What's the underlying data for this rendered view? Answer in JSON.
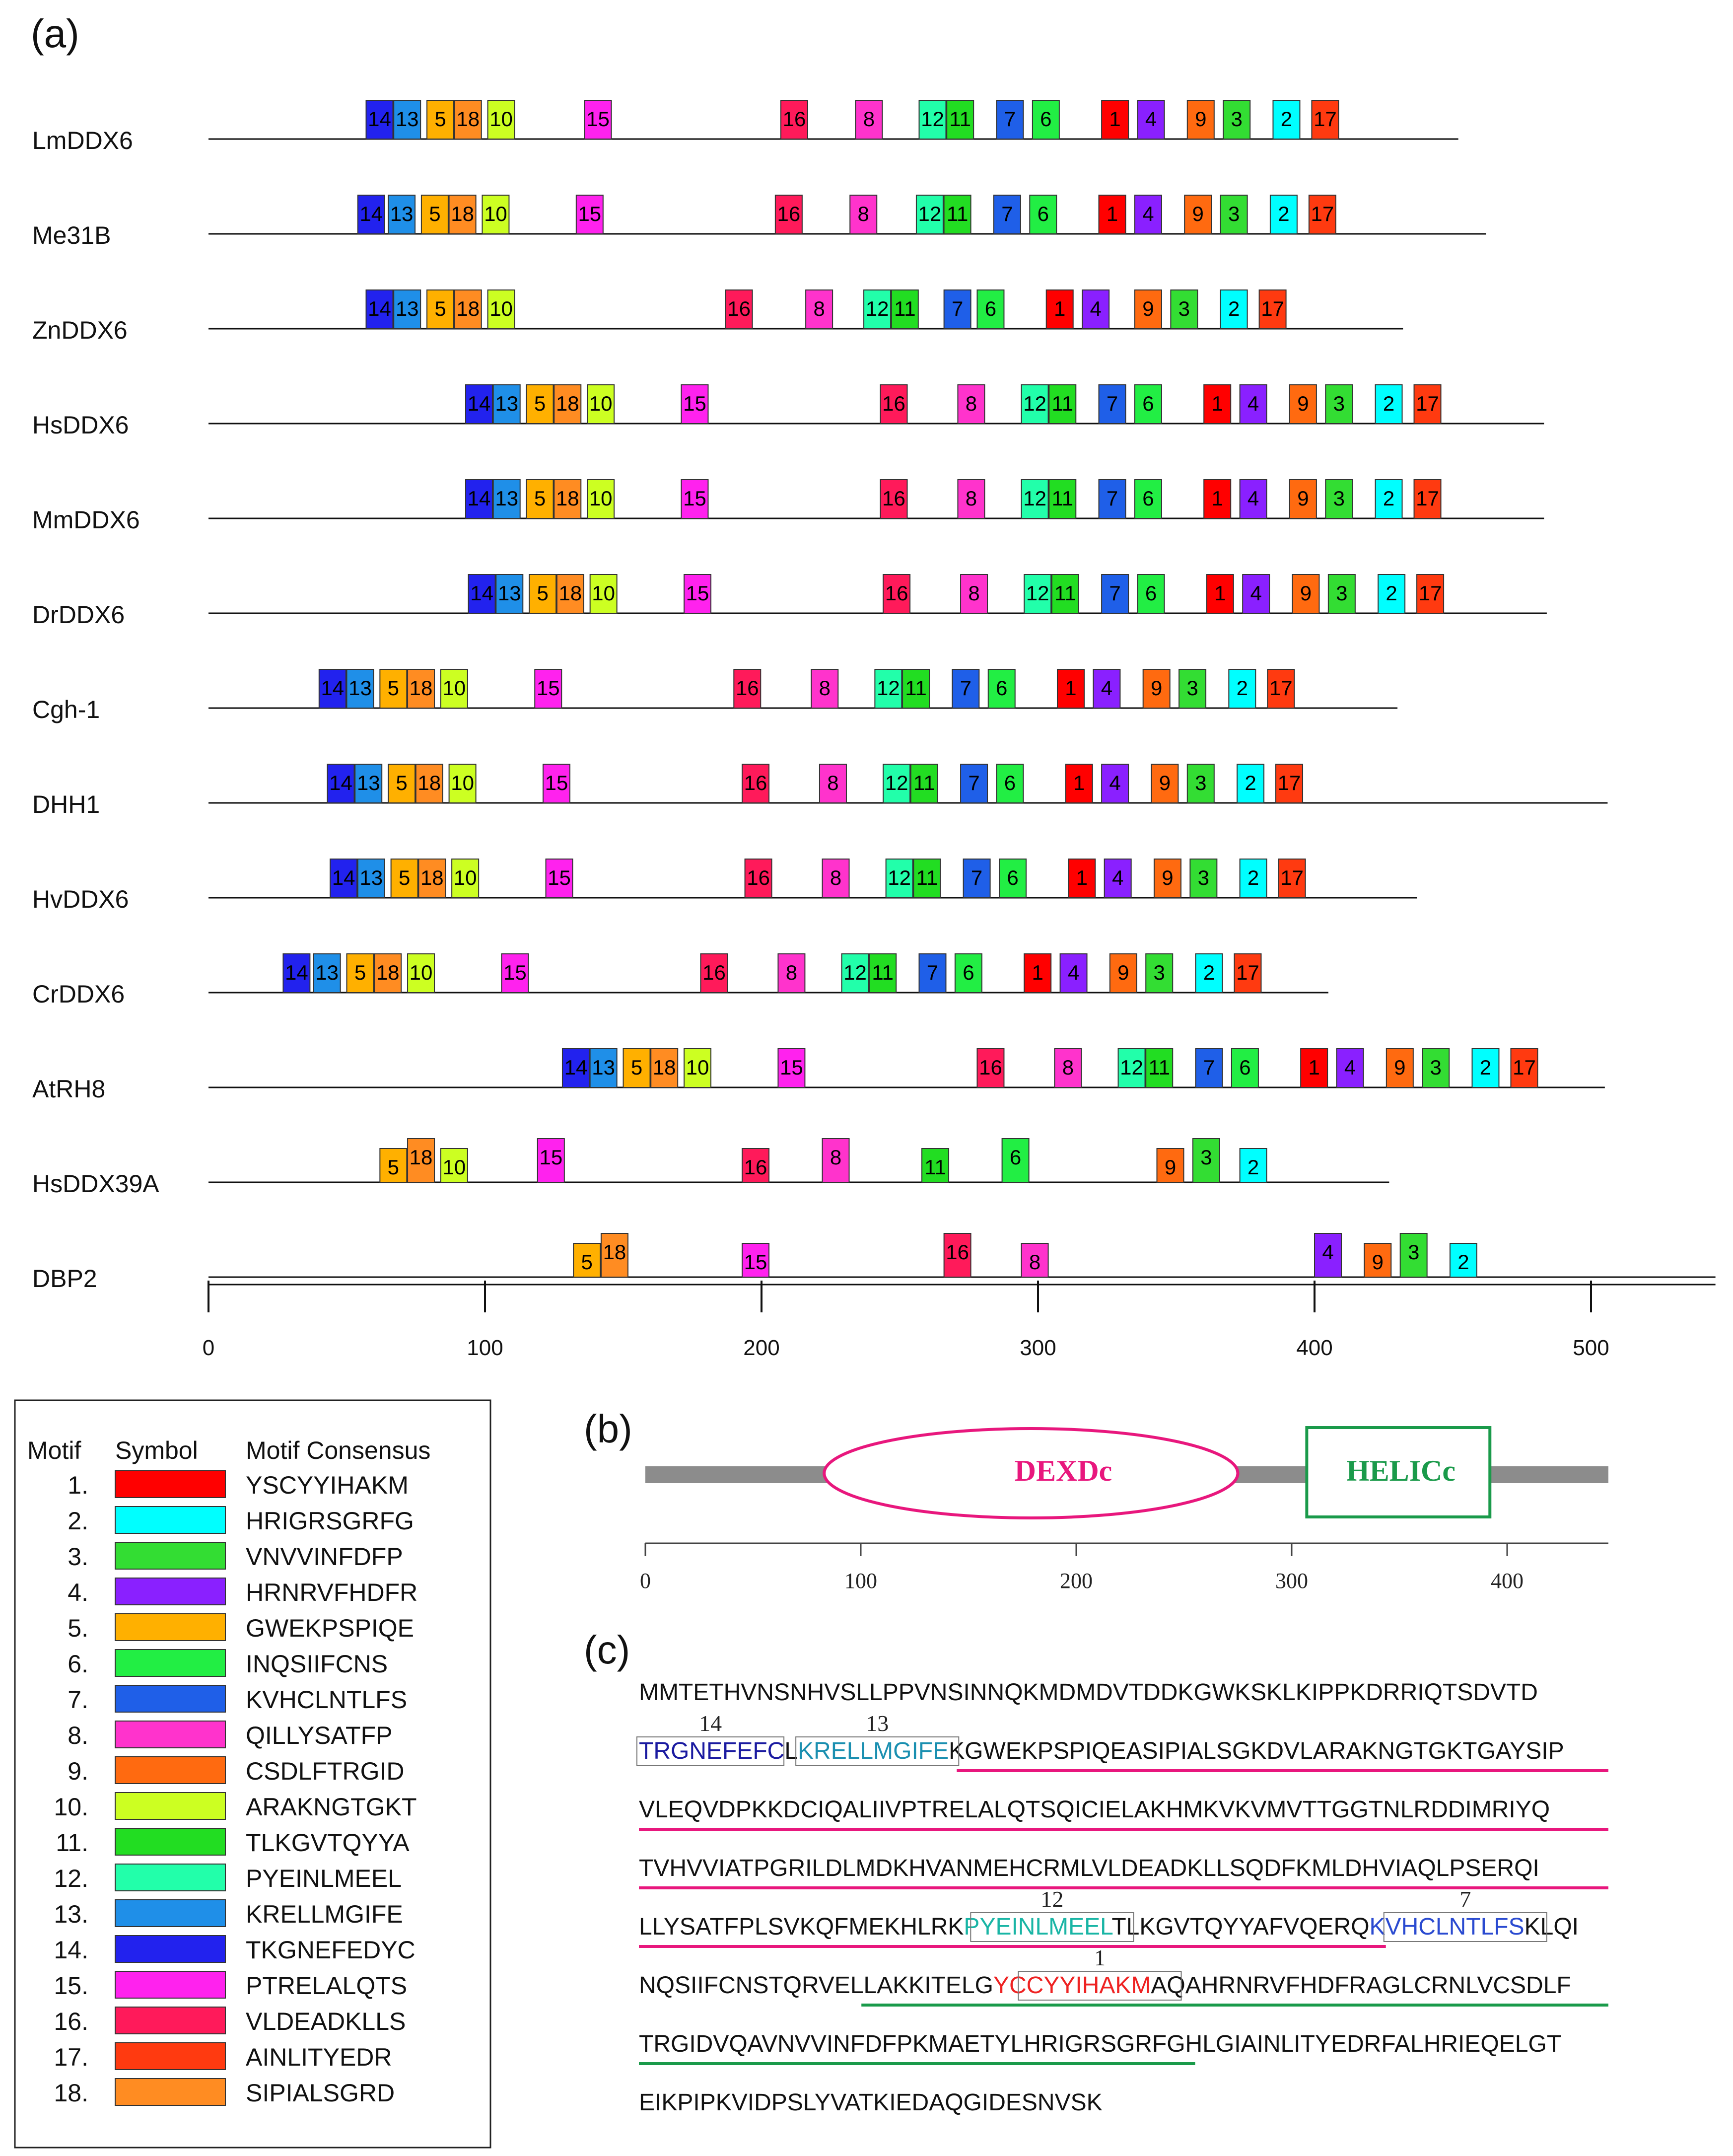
{
  "panels": {
    "a": "(a)",
    "b": "(b)",
    "c": "(c)"
  },
  "motif_colors": {
    "1": "#ff0000",
    "2": "#00ffff",
    "3": "#33dd33",
    "4": "#8a20ff",
    "5": "#ffb000",
    "6": "#22ee44",
    "7": "#1f5fe8",
    "8": "#ff33cc",
    "9": "#ff6a10",
    "10": "#ccff22",
    "11": "#22dd22",
    "12": "#22ffaa",
    "13": "#1f8fe8",
    "14": "#2222ee",
    "15": "#ff22ee",
    "16": "#ff1a5a",
    "17": "#ff3a10",
    "18": "#ff8c22"
  },
  "panel_a": {
    "axis": {
      "ticks": [
        0,
        100,
        200,
        300,
        400,
        500
      ],
      "max": 545
    },
    "proteins": [
      {
        "name": "LmDDX6",
        "length": 452,
        "motifs": [
          [
            14,
            57
          ],
          [
            13,
            67
          ],
          [
            5,
            79
          ],
          [
            18,
            89
          ],
          [
            10,
            101
          ],
          [
            15,
            136
          ],
          [
            16,
            207
          ],
          [
            8,
            234
          ],
          [
            12,
            257
          ],
          [
            11,
            267
          ],
          [
            7,
            285
          ],
          [
            6,
            298
          ],
          [
            1,
            323
          ],
          [
            4,
            336
          ],
          [
            9,
            354
          ],
          [
            3,
            367
          ],
          [
            2,
            385
          ],
          [
            17,
            399
          ]
        ]
      },
      {
        "name": "Me31B",
        "length": 462,
        "motifs": [
          [
            14,
            54
          ],
          [
            13,
            65
          ],
          [
            5,
            77
          ],
          [
            18,
            87
          ],
          [
            10,
            99
          ],
          [
            15,
            133
          ],
          [
            16,
            205
          ],
          [
            8,
            232
          ],
          [
            12,
            256
          ],
          [
            11,
            266
          ],
          [
            7,
            284
          ],
          [
            6,
            297
          ],
          [
            1,
            322
          ],
          [
            4,
            335
          ],
          [
            9,
            353
          ],
          [
            3,
            366
          ],
          [
            2,
            384
          ],
          [
            17,
            398
          ]
        ]
      },
      {
        "name": "ZnDDX6",
        "length": 432,
        "motifs": [
          [
            14,
            57
          ],
          [
            13,
            67
          ],
          [
            5,
            79
          ],
          [
            18,
            89
          ],
          [
            10,
            101
          ],
          [
            16,
            187
          ],
          [
            8,
            216
          ],
          [
            12,
            237
          ],
          [
            11,
            247
          ],
          [
            7,
            266
          ],
          [
            6,
            278
          ],
          [
            1,
            303
          ],
          [
            4,
            316
          ],
          [
            9,
            335
          ],
          [
            3,
            348
          ],
          [
            2,
            366
          ],
          [
            17,
            380
          ]
        ]
      },
      {
        "name": "HsDDX6",
        "length": 483,
        "motifs": [
          [
            14,
            93
          ],
          [
            13,
            103
          ],
          [
            5,
            115
          ],
          [
            18,
            125
          ],
          [
            10,
            137
          ],
          [
            15,
            171
          ],
          [
            16,
            243
          ],
          [
            8,
            271
          ],
          [
            12,
            294
          ],
          [
            11,
            304
          ],
          [
            7,
            322
          ],
          [
            6,
            335
          ],
          [
            1,
            360
          ],
          [
            4,
            373
          ],
          [
            9,
            391
          ],
          [
            3,
            404
          ],
          [
            2,
            422
          ],
          [
            17,
            436
          ]
        ]
      },
      {
        "name": "MmDDX6",
        "length": 483,
        "motifs": [
          [
            14,
            93
          ],
          [
            13,
            103
          ],
          [
            5,
            115
          ],
          [
            18,
            125
          ],
          [
            10,
            137
          ],
          [
            15,
            171
          ],
          [
            16,
            243
          ],
          [
            8,
            271
          ],
          [
            12,
            294
          ],
          [
            11,
            304
          ],
          [
            7,
            322
          ],
          [
            6,
            335
          ],
          [
            1,
            360
          ],
          [
            4,
            373
          ],
          [
            9,
            391
          ],
          [
            3,
            404
          ],
          [
            2,
            422
          ],
          [
            17,
            436
          ]
        ]
      },
      {
        "name": "DrDDX6",
        "length": 484,
        "motifs": [
          [
            14,
            94
          ],
          [
            13,
            104
          ],
          [
            5,
            116
          ],
          [
            18,
            126
          ],
          [
            10,
            138
          ],
          [
            15,
            172
          ],
          [
            16,
            244
          ],
          [
            8,
            272
          ],
          [
            12,
            295
          ],
          [
            11,
            305
          ],
          [
            7,
            323
          ],
          [
            6,
            336
          ],
          [
            1,
            361
          ],
          [
            4,
            374
          ],
          [
            9,
            392
          ],
          [
            3,
            405
          ],
          [
            2,
            423
          ],
          [
            17,
            437
          ]
        ]
      },
      {
        "name": "Cgh-1",
        "length": 430,
        "motifs": [
          [
            14,
            40
          ],
          [
            13,
            50
          ],
          [
            5,
            62
          ],
          [
            18,
            72
          ],
          [
            10,
            84
          ],
          [
            15,
            118
          ],
          [
            16,
            190
          ],
          [
            8,
            218
          ],
          [
            12,
            241
          ],
          [
            11,
            251
          ],
          [
            7,
            269
          ],
          [
            6,
            282
          ],
          [
            1,
            307
          ],
          [
            4,
            320
          ],
          [
            9,
            338
          ],
          [
            3,
            351
          ],
          [
            2,
            369
          ],
          [
            17,
            383
          ]
        ]
      },
      {
        "name": "DHH1",
        "length": 506,
        "motifs": [
          [
            14,
            43
          ],
          [
            13,
            53
          ],
          [
            5,
            65
          ],
          [
            18,
            75
          ],
          [
            10,
            87
          ],
          [
            15,
            121
          ],
          [
            16,
            193
          ],
          [
            8,
            221
          ],
          [
            12,
            244
          ],
          [
            11,
            254
          ],
          [
            7,
            272
          ],
          [
            6,
            285
          ],
          [
            1,
            310
          ],
          [
            4,
            323
          ],
          [
            9,
            341
          ],
          [
            3,
            354
          ],
          [
            2,
            372
          ],
          [
            17,
            386
          ]
        ]
      },
      {
        "name": "HvDDX6",
        "length": 437,
        "motifs": [
          [
            14,
            44
          ],
          [
            13,
            54
          ],
          [
            5,
            66
          ],
          [
            18,
            76
          ],
          [
            10,
            88
          ],
          [
            15,
            122
          ],
          [
            16,
            194
          ],
          [
            8,
            222
          ],
          [
            12,
            245
          ],
          [
            11,
            255
          ],
          [
            7,
            273
          ],
          [
            6,
            286
          ],
          [
            1,
            311
          ],
          [
            4,
            324
          ],
          [
            9,
            342
          ],
          [
            3,
            355
          ],
          [
            2,
            373
          ],
          [
            17,
            387
          ]
        ]
      },
      {
        "name": "CrDDX6",
        "length": 405,
        "motifs": [
          [
            14,
            27
          ],
          [
            13,
            38
          ],
          [
            5,
            50
          ],
          [
            18,
            60
          ],
          [
            10,
            72
          ],
          [
            15,
            106
          ],
          [
            16,
            178
          ],
          [
            8,
            206
          ],
          [
            12,
            229
          ],
          [
            11,
            239
          ],
          [
            7,
            257
          ],
          [
            6,
            270
          ],
          [
            1,
            295
          ],
          [
            4,
            308
          ],
          [
            9,
            326
          ],
          [
            3,
            339
          ],
          [
            2,
            357
          ],
          [
            17,
            371
          ]
        ]
      },
      {
        "name": "AtRH8",
        "length": 505,
        "motifs": [
          [
            14,
            128
          ],
          [
            13,
            138
          ],
          [
            5,
            150
          ],
          [
            18,
            160
          ],
          [
            10,
            172
          ],
          [
            15,
            206
          ],
          [
            16,
            278
          ],
          [
            8,
            306
          ],
          [
            12,
            329
          ],
          [
            11,
            339
          ],
          [
            7,
            357
          ],
          [
            6,
            370
          ],
          [
            1,
            395
          ],
          [
            4,
            408
          ],
          [
            9,
            426
          ],
          [
            3,
            439
          ],
          [
            2,
            457
          ],
          [
            17,
            471
          ]
        ]
      },
      {
        "name": "HsDDX39A",
        "length": 427,
        "motifs": [
          [
            5,
            62
          ],
          [
            18,
            72
          ],
          [
            10,
            84
          ],
          [
            15,
            119
          ],
          [
            16,
            193
          ],
          [
            8,
            222
          ],
          [
            11,
            258
          ],
          [
            6,
            287
          ],
          [
            9,
            343
          ],
          [
            3,
            356
          ],
          [
            2,
            373
          ]
        ]
      },
      {
        "name": "DBP2",
        "length": 545,
        "motifs": [
          [
            5,
            132
          ],
          [
            18,
            142
          ],
          [
            15,
            193
          ],
          [
            16,
            266
          ],
          [
            8,
            294
          ],
          [
            4,
            400
          ],
          [
            9,
            418
          ],
          [
            3,
            431
          ],
          [
            2,
            449
          ]
        ]
      }
    ]
  },
  "legend": {
    "headers": [
      "Motif",
      "Symbol",
      "Motif Consensus"
    ],
    "rows": [
      {
        "label": "1.",
        "motif": 1,
        "consensus": "YSCYYIHAKM"
      },
      {
        "label": "2.",
        "motif": 2,
        "consensus": "HRIGRSGRFG"
      },
      {
        "label": "3.",
        "motif": 3,
        "consensus": "VNVVINFDFP"
      },
      {
        "label": "4.",
        "motif": 4,
        "consensus": "HRNRVFHDFR"
      },
      {
        "label": "5.",
        "motif": 5,
        "consensus": "GWEKPSPIQE"
      },
      {
        "label": "6.",
        "motif": 6,
        "consensus": "INQSIIFCNS"
      },
      {
        "label": "7.",
        "motif": 7,
        "consensus": "KVHCLNTLFS"
      },
      {
        "label": "8.",
        "motif": 8,
        "consensus": "QILLYSATFP"
      },
      {
        "label": "9.",
        "motif": 9,
        "consensus": "CSDLFTRGID"
      },
      {
        "label": "10.",
        "motif": 10,
        "consensus": "ARAKNGTGKT"
      },
      {
        "label": "11.",
        "motif": 11,
        "consensus": "TLKGVTQYYA"
      },
      {
        "label": "12.",
        "motif": 12,
        "consensus": "PYEINLMEEL"
      },
      {
        "label": "13.",
        "motif": 13,
        "consensus": "KRELLMGIFE"
      },
      {
        "label": "14.",
        "motif": 14,
        "consensus": "TKGNEFEDYC"
      },
      {
        "label": "15.",
        "motif": 15,
        "consensus": "PTRELALQTS"
      },
      {
        "label": "16.",
        "motif": 16,
        "consensus": "VLDEADKLLS"
      },
      {
        "label": "17.",
        "motif": 17,
        "consensus": "AINLITYEDR"
      },
      {
        "label": "18.",
        "motif": 18,
        "consensus": "SIPIALSGRD"
      }
    ]
  },
  "panel_b": {
    "length": 447,
    "ticks": [
      0,
      100,
      200,
      300,
      400
    ],
    "domains": [
      {
        "name": "DEXDc",
        "start": 83,
        "end": 275,
        "color": "#e8177d"
      },
      {
        "name": "HELICc",
        "start": 307,
        "end": 392,
        "color": "#1a9a4a"
      }
    ]
  },
  "panel_c": {
    "lines": [
      [
        {
          "t": "MMTETHVNSNHVSLLPPVNSINNQKMDMDVTDDKGWKSKLKIPPKDRRIQTSDVTD"
        }
      ],
      [
        {
          "t": "TRGNEFEFC",
          "c": "#1a1aa0",
          "box": "14"
        },
        {
          "t": "L"
        },
        {
          "t": "KRELLMGIFE",
          "c": "#1a8fb0",
          "box": "13"
        },
        {
          "t": "KGWEKPSPIQEASIPIALSGKDVLARAKNGTGKTGAYSIP"
        }
      ],
      [
        {
          "t": "VLEQVDPKKDCIQALIIVPTRELALQTSQICIELAKHMKVKVMVTTGGTNLRDDIMRIYQ"
        }
      ],
      [
        {
          "t": "TVHVVIATPGRILDLMDKHVANMEHCRMLVLDEADKLLSQDFKMLDHVIAQLPSERQI"
        }
      ],
      [
        {
          "t": "LLYSATFPLSVKQFMEKHLRK"
        },
        {
          "t": "PYEINLMEEL",
          "c": "#19b5a5",
          "box": "12"
        },
        {
          "t": "TLKGVTQYYAFVQERQ"
        },
        {
          "t": "KVHCLNTLFS",
          "c": "#2a4ad0",
          "box": "7"
        },
        {
          "t": "KLQI"
        }
      ],
      [
        {
          "t": "NQSIIFCNSTQRVELLAKKITELG"
        },
        {
          "t": "YCCYYIHAKM",
          "c": "#ee2222",
          "box": "1"
        },
        {
          "t": "AQAHRNRVFHDFRAGLCRNLVCSDLF"
        }
      ],
      [
        {
          "t": "TRGIDVQAVNVVINFDFPKMAETYLHRIGRSGRFGHLGIAINLITYEDRFALHRIEQELGT"
        }
      ],
      [
        {
          "t": "EIKPIPKVIDPSLYVATKIEDAQGIDESNVSK"
        }
      ]
    ]
  }
}
